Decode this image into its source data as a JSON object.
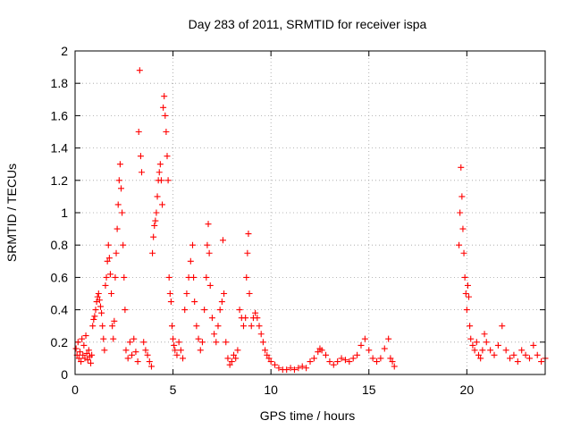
{
  "chart_data": {
    "type": "scatter",
    "title": "Day 283 of 2011, SRMTID for receiver ispa",
    "xlabel": "GPS time / hours",
    "ylabel": "SRMTID / TECUs",
    "xlim": [
      0,
      24
    ],
    "ylim": [
      0,
      2
    ],
    "xticks": [
      0,
      5,
      10,
      15,
      20
    ],
    "yticks": [
      0,
      0.2,
      0.4,
      0.6,
      0.8,
      1,
      1.2,
      1.4,
      1.6,
      1.8,
      2
    ],
    "grid": true,
    "marker": "+",
    "color": "#ff0000",
    "series": [
      {
        "values": [
          [
            0.05,
            0.16
          ],
          [
            0.1,
            0.12
          ],
          [
            0.15,
            0.2
          ],
          [
            0.2,
            0.1
          ],
          [
            0.25,
            0.14
          ],
          [
            0.3,
            0.08
          ],
          [
            0.35,
            0.22
          ],
          [
            0.4,
            0.12
          ],
          [
            0.45,
            0.18
          ],
          [
            0.5,
            0.1
          ],
          [
            0.55,
            0.24
          ],
          [
            0.6,
            0.13
          ],
          [
            0.65,
            0.09
          ],
          [
            0.7,
            0.15
          ],
          [
            0.75,
            0.11
          ],
          [
            0.8,
            0.07
          ],
          [
            0.85,
            0.12
          ],
          [
            0.9,
            0.3
          ],
          [
            0.95,
            0.34
          ],
          [
            1.0,
            0.36
          ],
          [
            1.05,
            0.4
          ],
          [
            1.1,
            0.45
          ],
          [
            1.15,
            0.48
          ],
          [
            1.2,
            0.5
          ],
          [
            1.25,
            0.46
          ],
          [
            1.3,
            0.42
          ],
          [
            1.35,
            0.38
          ],
          [
            1.4,
            0.3
          ],
          [
            1.45,
            0.22
          ],
          [
            1.5,
            0.15
          ],
          [
            1.55,
            0.55
          ],
          [
            1.6,
            0.6
          ],
          [
            1.65,
            0.7
          ],
          [
            1.7,
            0.8
          ],
          [
            1.75,
            0.72
          ],
          [
            1.8,
            0.62
          ],
          [
            1.85,
            0.5
          ],
          [
            1.9,
            0.3
          ],
          [
            1.95,
            0.22
          ],
          [
            2.0,
            0.33
          ],
          [
            2.05,
            0.6
          ],
          [
            2.1,
            0.75
          ],
          [
            2.15,
            0.9
          ],
          [
            2.2,
            1.05
          ],
          [
            2.25,
            1.2
          ],
          [
            2.3,
            1.3
          ],
          [
            2.35,
            1.15
          ],
          [
            2.4,
            1.0
          ],
          [
            2.45,
            0.8
          ],
          [
            2.5,
            0.6
          ],
          [
            2.55,
            0.4
          ],
          [
            2.6,
            0.15
          ],
          [
            2.7,
            0.1
          ],
          [
            2.8,
            0.2
          ],
          [
            2.9,
            0.12
          ],
          [
            3.0,
            0.22
          ],
          [
            3.1,
            0.14
          ],
          [
            3.2,
            0.08
          ],
          [
            3.25,
            1.5
          ],
          [
            3.3,
            1.88
          ],
          [
            3.35,
            1.35
          ],
          [
            3.4,
            1.25
          ],
          [
            3.5,
            0.2
          ],
          [
            3.6,
            0.15
          ],
          [
            3.7,
            0.12
          ],
          [
            3.8,
            0.08
          ],
          [
            3.9,
            0.05
          ],
          [
            3.95,
            0.75
          ],
          [
            4.0,
            0.85
          ],
          [
            4.05,
            0.92
          ],
          [
            4.1,
            0.95
          ],
          [
            4.15,
            1.0
          ],
          [
            4.2,
            1.1
          ],
          [
            4.25,
            1.2
          ],
          [
            4.3,
            1.25
          ],
          [
            4.35,
            1.3
          ],
          [
            4.4,
            1.2
          ],
          [
            4.45,
            1.05
          ],
          [
            4.5,
            1.65
          ],
          [
            4.55,
            1.72
          ],
          [
            4.6,
            1.6
          ],
          [
            4.65,
            1.5
          ],
          [
            4.7,
            1.35
          ],
          [
            4.75,
            1.2
          ],
          [
            4.8,
            0.6
          ],
          [
            4.85,
            0.5
          ],
          [
            4.9,
            0.45
          ],
          [
            4.95,
            0.3
          ],
          [
            5.0,
            0.22
          ],
          [
            5.05,
            0.18
          ],
          [
            5.1,
            0.15
          ],
          [
            5.2,
            0.12
          ],
          [
            5.3,
            0.2
          ],
          [
            5.4,
            0.15
          ],
          [
            5.5,
            0.1
          ],
          [
            5.6,
            0.4
          ],
          [
            5.7,
            0.5
          ],
          [
            5.8,
            0.6
          ],
          [
            5.9,
            0.7
          ],
          [
            6.0,
            0.8
          ],
          [
            6.05,
            0.6
          ],
          [
            6.1,
            0.45
          ],
          [
            6.2,
            0.3
          ],
          [
            6.3,
            0.22
          ],
          [
            6.4,
            0.15
          ],
          [
            6.5,
            0.2
          ],
          [
            6.6,
            0.4
          ],
          [
            6.7,
            0.6
          ],
          [
            6.75,
            0.8
          ],
          [
            6.8,
            0.93
          ],
          [
            6.85,
            0.75
          ],
          [
            6.9,
            0.55
          ],
          [
            7.0,
            0.35
          ],
          [
            7.1,
            0.25
          ],
          [
            7.2,
            0.2
          ],
          [
            7.3,
            0.3
          ],
          [
            7.4,
            0.4
          ],
          [
            7.5,
            0.45
          ],
          [
            7.55,
            0.83
          ],
          [
            7.6,
            0.5
          ],
          [
            7.7,
            0.2
          ],
          [
            7.8,
            0.1
          ],
          [
            7.9,
            0.06
          ],
          [
            8.0,
            0.08
          ],
          [
            8.1,
            0.12
          ],
          [
            8.2,
            0.1
          ],
          [
            8.3,
            0.15
          ],
          [
            8.4,
            0.4
          ],
          [
            8.5,
            0.35
          ],
          [
            8.6,
            0.3
          ],
          [
            8.7,
            0.35
          ],
          [
            8.75,
            0.6
          ],
          [
            8.8,
            0.75
          ],
          [
            8.85,
            0.87
          ],
          [
            8.9,
            0.5
          ],
          [
            9.0,
            0.3
          ],
          [
            9.1,
            0.35
          ],
          [
            9.2,
            0.38
          ],
          [
            9.3,
            0.35
          ],
          [
            9.4,
            0.3
          ],
          [
            9.5,
            0.25
          ],
          [
            9.6,
            0.2
          ],
          [
            9.7,
            0.15
          ],
          [
            9.8,
            0.12
          ],
          [
            9.9,
            0.1
          ],
          [
            10.0,
            0.08
          ],
          [
            10.2,
            0.06
          ],
          [
            10.4,
            0.04
          ],
          [
            10.6,
            0.03
          ],
          [
            10.8,
            0.03
          ],
          [
            11.0,
            0.04
          ],
          [
            11.2,
            0.03
          ],
          [
            11.4,
            0.04
          ],
          [
            11.6,
            0.05
          ],
          [
            11.8,
            0.04
          ],
          [
            12.0,
            0.08
          ],
          [
            12.2,
            0.1
          ],
          [
            12.4,
            0.14
          ],
          [
            12.5,
            0.16
          ],
          [
            12.6,
            0.15
          ],
          [
            12.8,
            0.12
          ],
          [
            13.0,
            0.08
          ],
          [
            13.2,
            0.06
          ],
          [
            13.4,
            0.08
          ],
          [
            13.6,
            0.1
          ],
          [
            13.8,
            0.09
          ],
          [
            14.0,
            0.08
          ],
          [
            14.2,
            0.1
          ],
          [
            14.4,
            0.12
          ],
          [
            14.6,
            0.18
          ],
          [
            14.8,
            0.22
          ],
          [
            15.0,
            0.15
          ],
          [
            15.2,
            0.1
          ],
          [
            15.4,
            0.08
          ],
          [
            15.6,
            0.1
          ],
          [
            15.8,
            0.16
          ],
          [
            16.0,
            0.22
          ],
          [
            16.1,
            0.1
          ],
          [
            16.2,
            0.08
          ],
          [
            16.3,
            0.05
          ],
          [
            19.6,
            0.8
          ],
          [
            19.65,
            1.0
          ],
          [
            19.7,
            1.28
          ],
          [
            19.75,
            1.1
          ],
          [
            19.8,
            0.9
          ],
          [
            19.85,
            0.75
          ],
          [
            19.9,
            0.6
          ],
          [
            19.95,
            0.5
          ],
          [
            20.0,
            0.4
          ],
          [
            20.05,
            0.55
          ],
          [
            20.1,
            0.48
          ],
          [
            20.15,
            0.3
          ],
          [
            20.2,
            0.22
          ],
          [
            20.3,
            0.18
          ],
          [
            20.4,
            0.15
          ],
          [
            20.5,
            0.2
          ],
          [
            20.6,
            0.12
          ],
          [
            20.7,
            0.1
          ],
          [
            20.8,
            0.15
          ],
          [
            20.9,
            0.25
          ],
          [
            21.0,
            0.2
          ],
          [
            21.2,
            0.15
          ],
          [
            21.4,
            0.12
          ],
          [
            21.6,
            0.18
          ],
          [
            21.8,
            0.3
          ],
          [
            22.0,
            0.15
          ],
          [
            22.2,
            0.1
          ],
          [
            22.4,
            0.12
          ],
          [
            22.6,
            0.08
          ],
          [
            22.8,
            0.15
          ],
          [
            23.0,
            0.12
          ],
          [
            23.2,
            0.1
          ],
          [
            23.4,
            0.18
          ],
          [
            23.6,
            0.12
          ],
          [
            23.8,
            0.08
          ],
          [
            24.0,
            0.1
          ]
        ]
      }
    ]
  }
}
